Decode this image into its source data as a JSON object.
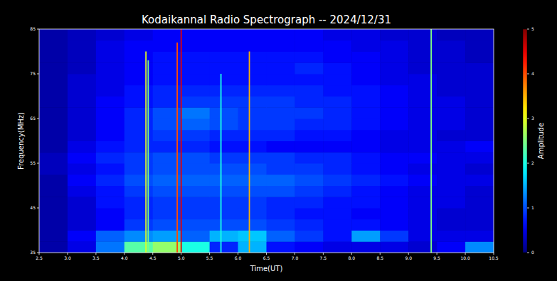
{
  "chart_data": {
    "type": "heatmap",
    "title": "Kodaikannal Radio Spectrograph -- 2024/12/31",
    "x_label": "Time(UT)",
    "y_label": "Frequency(MHz)",
    "xlim": [
      2.5,
      10.5
    ],
    "ylim": [
      35,
      85
    ],
    "xticks": [
      2.5,
      {
        "value": 3,
        "label": "3.0"
      },
      3.5,
      {
        "value": 4,
        "label": "4.0"
      },
      4.5,
      {
        "value": 5,
        "label": "5.0"
      },
      5.5,
      {
        "value": 6,
        "label": "6.0"
      },
      6.5,
      {
        "value": 7,
        "label": "7.0"
      },
      7.5,
      {
        "value": 8,
        "label": "8.0"
      },
      8.5,
      {
        "value": 9,
        "label": "9.0"
      },
      9.5,
      {
        "value": 10,
        "label": "10.0"
      },
      10.5
    ],
    "yticks": [
      35,
      45,
      55,
      65,
      75,
      85
    ],
    "x": [
      2.75,
      3.25,
      3.75,
      4.25,
      4.75,
      5.25,
      5.75,
      6.25,
      6.75,
      7.25,
      7.75,
      8.25,
      8.75,
      9.25,
      9.75,
      10.25
    ],
    "y": [
      36.25,
      38.75,
      41.25,
      43.75,
      46.25,
      48.75,
      51.25,
      53.75,
      56.25,
      58.75,
      61.25,
      63.75,
      66.25,
      68.75,
      71.25,
      73.75,
      76.25,
      78.75,
      81.25,
      83.75
    ],
    "cells": [
      [
        0.2,
        0.5,
        1.2,
        2.3,
        2.6,
        2.0,
        0.8,
        1.5,
        0.7,
        0.6,
        0.5,
        0.5,
        0.5,
        0.4,
        0.6,
        1.3
      ],
      [
        0.2,
        0.6,
        1.1,
        1.3,
        1.4,
        1.1,
        1.5,
        1.6,
        1.1,
        0.9,
        0.7,
        1.4,
        0.9,
        0.5,
        0.5,
        0.5
      ],
      [
        0.2,
        0.4,
        0.6,
        0.9,
        1.0,
        1.0,
        1.0,
        1.0,
        0.9,
        0.8,
        0.7,
        0.7,
        0.6,
        0.5,
        0.4,
        0.4
      ],
      [
        0.2,
        0.4,
        0.6,
        0.8,
        0.9,
        0.9,
        0.9,
        0.9,
        0.8,
        0.7,
        0.7,
        0.6,
        0.6,
        0.5,
        0.4,
        0.4
      ],
      [
        0.2,
        0.4,
        0.7,
        0.8,
        0.9,
        0.9,
        0.9,
        0.9,
        0.8,
        0.8,
        0.7,
        0.7,
        0.6,
        0.5,
        0.5,
        0.4
      ],
      [
        0.2,
        0.5,
        0.7,
        0.9,
        1.0,
        1.0,
        1.0,
        1.0,
        1.0,
        0.9,
        0.8,
        0.7,
        0.6,
        0.5,
        0.5,
        0.4
      ],
      [
        0.2,
        0.6,
        0.8,
        1.0,
        1.1,
        1.1,
        1.1,
        1.1,
        1.1,
        1.0,
        0.9,
        0.8,
        0.7,
        0.6,
        0.5,
        0.5
      ],
      [
        0.3,
        0.5,
        0.7,
        0.9,
        1.0,
        1.0,
        1.0,
        1.0,
        0.9,
        0.9,
        0.8,
        0.7,
        0.6,
        0.5,
        0.5,
        0.4
      ],
      [
        0.3,
        0.6,
        0.8,
        0.9,
        1.0,
        1.0,
        0.9,
        0.9,
        0.9,
        0.8,
        0.8,
        0.7,
        0.6,
        0.6,
        0.5,
        0.5
      ],
      [
        0.2,
        0.5,
        0.7,
        0.8,
        0.8,
        0.8,
        0.7,
        0.7,
        0.6,
        0.6,
        0.6,
        0.6,
        0.5,
        0.5,
        0.5,
        0.6
      ],
      [
        0.2,
        0.4,
        0.6,
        0.8,
        0.9,
        0.9,
        0.8,
        0.8,
        0.8,
        0.7,
        0.7,
        0.6,
        0.5,
        0.5,
        0.4,
        0.4
      ],
      [
        0.2,
        0.4,
        0.6,
        0.8,
        1.0,
        1.1,
        1.0,
        0.9,
        0.9,
        0.8,
        0.8,
        0.7,
        0.6,
        0.5,
        0.5,
        0.4
      ],
      [
        0.2,
        0.4,
        0.6,
        0.8,
        1.0,
        1.2,
        1.0,
        0.9,
        0.9,
        0.9,
        0.8,
        0.7,
        0.6,
        0.5,
        0.5,
        0.4
      ],
      [
        0.2,
        0.4,
        0.6,
        0.7,
        0.8,
        0.9,
        0.9,
        0.9,
        0.9,
        0.8,
        0.8,
        0.7,
        0.6,
        0.5,
        0.5,
        0.4
      ],
      [
        0.2,
        0.4,
        0.5,
        0.7,
        0.8,
        0.8,
        0.8,
        0.8,
        0.8,
        0.8,
        0.7,
        0.7,
        0.6,
        0.5,
        0.4,
        0.4
      ],
      [
        0.2,
        0.4,
        0.5,
        0.6,
        0.7,
        0.7,
        0.7,
        0.7,
        0.7,
        0.7,
        0.7,
        0.6,
        0.5,
        0.5,
        0.4,
        0.4
      ],
      [
        0.2,
        0.3,
        0.5,
        0.6,
        0.7,
        0.7,
        0.7,
        0.7,
        0.7,
        0.8,
        0.7,
        0.6,
        0.5,
        0.4,
        0.4,
        0.4
      ],
      [
        0.2,
        0.3,
        0.5,
        0.6,
        0.7,
        0.7,
        0.7,
        0.7,
        0.7,
        0.7,
        0.6,
        0.6,
        0.5,
        0.4,
        0.4,
        0.3
      ],
      [
        0.2,
        0.3,
        0.5,
        0.6,
        0.6,
        0.6,
        0.6,
        0.6,
        0.6,
        0.6,
        0.6,
        0.5,
        0.5,
        0.4,
        0.4,
        0.3
      ],
      [
        0.2,
        0.3,
        0.4,
        0.5,
        0.6,
        0.6,
        0.6,
        0.6,
        0.6,
        0.6,
        0.5,
        0.5,
        0.4,
        0.4,
        0.3,
        0.3
      ]
    ],
    "bursts": [
      {
        "time": 4.38,
        "fmin": 35,
        "fmax": 80,
        "amplitude": 3
      },
      {
        "time": 4.42,
        "fmin": 35,
        "fmax": 78,
        "amplitude": 2.5
      },
      {
        "time": 4.93,
        "fmin": 35,
        "fmax": 82,
        "amplitude": 4
      },
      {
        "time": 5.0,
        "fmin": 35,
        "fmax": 85,
        "amplitude": 4.5
      },
      {
        "time": 5.7,
        "fmin": 35,
        "fmax": 75,
        "amplitude": 2
      },
      {
        "time": 6.2,
        "fmin": 35,
        "fmax": 80,
        "amplitude": 3.5
      },
      {
        "time": 9.4,
        "fmin": 35,
        "fmax": 85,
        "amplitude": 2.5
      }
    ],
    "colorbar": {
      "label": "Amplitude",
      "range": [
        0,
        5
      ],
      "ticks": [
        0,
        1,
        2,
        3,
        4,
        5
      ]
    }
  }
}
